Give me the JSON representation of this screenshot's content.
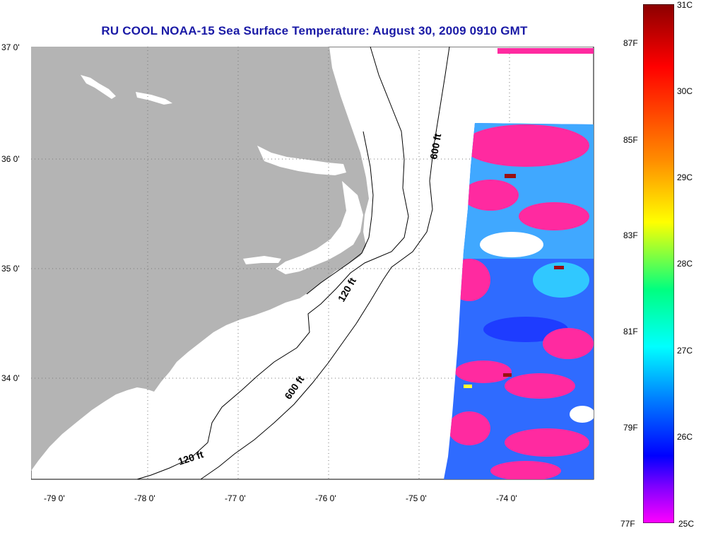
{
  "title": "RU COOL  NOAA-15  Sea Surface Temperature:  August 30, 2009 0910 GMT",
  "map": {
    "lat_labels": [
      "37 0'",
      "36 0'",
      "35 0'",
      "34 0'"
    ],
    "lon_labels": [
      "-79 0'",
      "-78 0'",
      "-77 0'",
      "-76 0'",
      "-75 0'",
      "-74 0'"
    ],
    "lat_range": [
      33.15,
      37.0
    ],
    "lon_range": [
      -79.3,
      -73.0
    ],
    "land_color": "#b4b4b4",
    "isobath_labels": [
      {
        "text": "600 ft"
      },
      {
        "text": "120 ft"
      },
      {
        "text": "600 ft"
      },
      {
        "text": "120 ft"
      }
    ]
  },
  "colorbar": {
    "fahrenheit_labels": [
      "87F",
      "85F",
      "83F",
      "81F",
      "79F",
      "77F"
    ],
    "celsius_labels": [
      "31C",
      "30C",
      "29C",
      "28C",
      "27C",
      "26C",
      "25C"
    ],
    "colors": [
      "#8b0000",
      "#ff0000",
      "#ff8c00",
      "#ffff00",
      "#00ff80",
      "#00ffff",
      "#0080ff",
      "#0000ff",
      "#8000ff",
      "#ff00ff"
    ]
  },
  "sst_colors": {
    "warm_pink": "#ff2aa0",
    "cold_blue": "#2a5aff",
    "cyan": "#30c8ff",
    "dark_red": "#9a1010"
  }
}
